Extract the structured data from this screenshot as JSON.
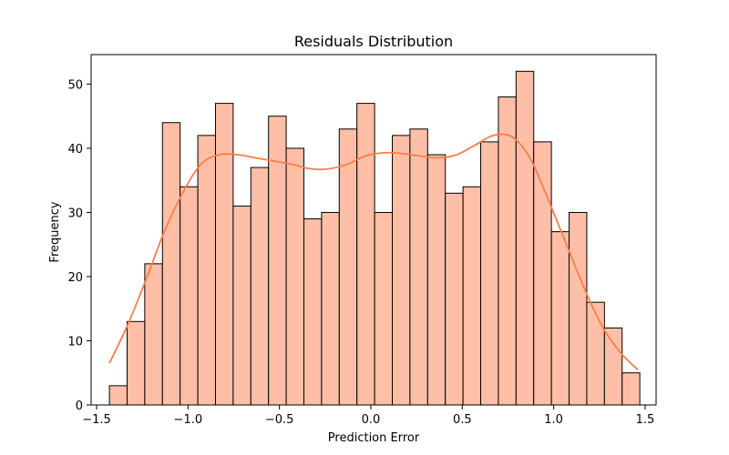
{
  "chart_data": {
    "type": "bar",
    "title": "Residuals Distribution",
    "xlabel": "Prediction Error",
    "ylabel": "Frequency",
    "xlim": [
      -1.53,
      1.56
    ],
    "ylim": [
      0,
      54.6
    ],
    "x_ticks": [
      -1.5,
      -1.0,
      -0.5,
      0.0,
      0.5,
      1.0,
      1.5
    ],
    "x_tick_labels": [
      "−1.5",
      "−1.0",
      "−0.5",
      "0.0",
      "0.5",
      "1.0",
      "1.5"
    ],
    "y_ticks": [
      0,
      10,
      20,
      30,
      40,
      50
    ],
    "y_tick_labels": [
      "0",
      "10",
      "20",
      "30",
      "40",
      "50"
    ],
    "bin_start": -1.43,
    "bin_width": 0.0967,
    "values": [
      3,
      13,
      22,
      44,
      34,
      42,
      47,
      31,
      37,
      45,
      40,
      29,
      30,
      43,
      47,
      30,
      42,
      43,
      39,
      33,
      34,
      41,
      48,
      52,
      41,
      27,
      30,
      16,
      12,
      5
    ],
    "kde": {
      "x": [
        -1.43,
        -1.33,
        -1.23,
        -1.13,
        -1.03,
        -0.93,
        -0.83,
        -0.73,
        -0.63,
        -0.53,
        -0.43,
        -0.33,
        -0.23,
        -0.13,
        -0.03,
        0.07,
        0.17,
        0.27,
        0.37,
        0.47,
        0.57,
        0.67,
        0.77,
        0.87,
        0.97,
        1.07,
        1.17,
        1.27,
        1.37,
        1.46
      ],
      "y": [
        6.5,
        12.5,
        19.5,
        27,
        33,
        37.5,
        39,
        39,
        38.5,
        38,
        37.5,
        36.8,
        36.8,
        37.5,
        38.8,
        39.3,
        39.2,
        38.8,
        38.5,
        39,
        40.5,
        42,
        41.8,
        38.5,
        32,
        25,
        18,
        12,
        8,
        5.5
      ]
    },
    "grid": false,
    "colors": {
      "bar_fill": "#ffbfa6",
      "bar_edge": "#000000",
      "kde_line": "#fa7e4c"
    }
  }
}
